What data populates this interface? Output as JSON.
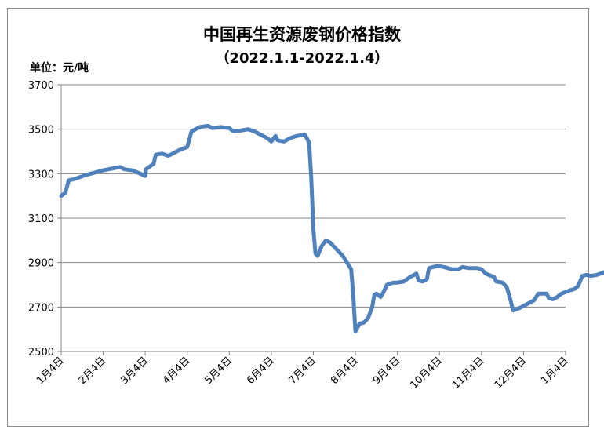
{
  "chart_data": {
    "type": "line",
    "title": "中国再生资源废钢价格指数",
    "subtitle": "（2022.1.1-2022.1.4）",
    "unit_label": "单位：元/吨",
    "ylim": [
      2500,
      3700
    ],
    "yticks": [
      "2500",
      "2700",
      "2900",
      "3100",
      "3300",
      "3500",
      "3700"
    ],
    "xlabel": "",
    "ylabel": "",
    "grid": "horizontal",
    "line_color": "#4f81bd",
    "x_tick_labels": [
      "1月4日",
      "2月4日",
      "3月4日",
      "4月4日",
      "5月4日",
      "6月4日",
      "7月4日",
      "8月4日",
      "9月4日",
      "10月4日",
      "11月4日",
      "12月4日",
      "1月4日"
    ],
    "series": [
      {
        "values": [
          [
            0,
            3200
          ],
          [
            0.1,
            3215
          ],
          [
            0.18,
            3270
          ],
          [
            0.3,
            3275
          ],
          [
            0.6,
            3295
          ],
          [
            1.0,
            3315
          ],
          [
            1.4,
            3330
          ],
          [
            1.5,
            3320
          ],
          [
            1.7,
            3315
          ],
          [
            2.0,
            3290
          ],
          [
            2.02,
            3320
          ],
          [
            2.2,
            3345
          ],
          [
            2.25,
            3385
          ],
          [
            2.4,
            3390
          ],
          [
            2.55,
            3380
          ],
          [
            2.8,
            3405
          ],
          [
            3.0,
            3420
          ],
          [
            3.1,
            3490
          ],
          [
            3.3,
            3510
          ],
          [
            3.5,
            3515
          ],
          [
            3.6,
            3505
          ],
          [
            3.8,
            3510
          ],
          [
            4.0,
            3505
          ],
          [
            4.1,
            3490
          ],
          [
            4.3,
            3495
          ],
          [
            4.45,
            3500
          ],
          [
            4.6,
            3490
          ],
          [
            4.8,
            3470
          ],
          [
            4.9,
            3460
          ],
          [
            5.0,
            3445
          ],
          [
            5.1,
            3470
          ],
          [
            5.15,
            3450
          ],
          [
            5.3,
            3445
          ],
          [
            5.45,
            3460
          ],
          [
            5.6,
            3470
          ],
          [
            5.8,
            3475
          ],
          [
            5.9,
            3440
          ],
          [
            5.95,
            3280
          ],
          [
            6.0,
            3050
          ],
          [
            6.05,
            2940
          ],
          [
            6.1,
            2930
          ],
          [
            6.2,
            2975
          ],
          [
            6.3,
            3000
          ],
          [
            6.4,
            2990
          ],
          [
            6.55,
            2960
          ],
          [
            6.7,
            2930
          ],
          [
            6.8,
            2900
          ],
          [
            6.9,
            2870
          ],
          [
            6.95,
            2750
          ],
          [
            7.0,
            2590
          ],
          [
            7.1,
            2625
          ],
          [
            7.2,
            2630
          ],
          [
            7.3,
            2650
          ],
          [
            7.4,
            2700
          ],
          [
            7.45,
            2755
          ],
          [
            7.5,
            2760
          ],
          [
            7.6,
            2745
          ],
          [
            7.65,
            2760
          ],
          [
            7.75,
            2800
          ],
          [
            7.9,
            2810
          ],
          [
            8.0,
            2810
          ],
          [
            8.15,
            2815
          ],
          [
            8.3,
            2835
          ],
          [
            8.45,
            2850
          ],
          [
            8.5,
            2820
          ],
          [
            8.6,
            2815
          ],
          [
            8.7,
            2825
          ],
          [
            8.75,
            2875
          ],
          [
            8.95,
            2885
          ],
          [
            9.1,
            2880
          ],
          [
            9.3,
            2870
          ],
          [
            9.45,
            2870
          ],
          [
            9.55,
            2880
          ],
          [
            9.7,
            2875
          ],
          [
            9.9,
            2875
          ],
          [
            10.0,
            2870
          ],
          [
            10.1,
            2850
          ],
          [
            10.3,
            2835
          ],
          [
            10.35,
            2815
          ],
          [
            10.5,
            2810
          ],
          [
            10.6,
            2790
          ],
          [
            10.7,
            2725
          ],
          [
            10.75,
            2685
          ],
          [
            10.9,
            2695
          ],
          [
            11.0,
            2705
          ],
          [
            11.15,
            2720
          ],
          [
            11.25,
            2730
          ],
          [
            11.35,
            2760
          ],
          [
            11.55,
            2760
          ],
          [
            11.6,
            2740
          ],
          [
            11.7,
            2735
          ],
          [
            11.8,
            2745
          ],
          [
            11.9,
            2760
          ],
          [
            12.1,
            2775
          ],
          [
            12.2,
            2780
          ],
          [
            12.3,
            2795
          ],
          [
            12.4,
            2840
          ],
          [
            12.5,
            2845
          ],
          [
            12.6,
            2840
          ],
          [
            12.75,
            2845
          ],
          [
            12.9,
            2855
          ],
          [
            13.0,
            2865
          ]
        ]
      }
    ]
  }
}
